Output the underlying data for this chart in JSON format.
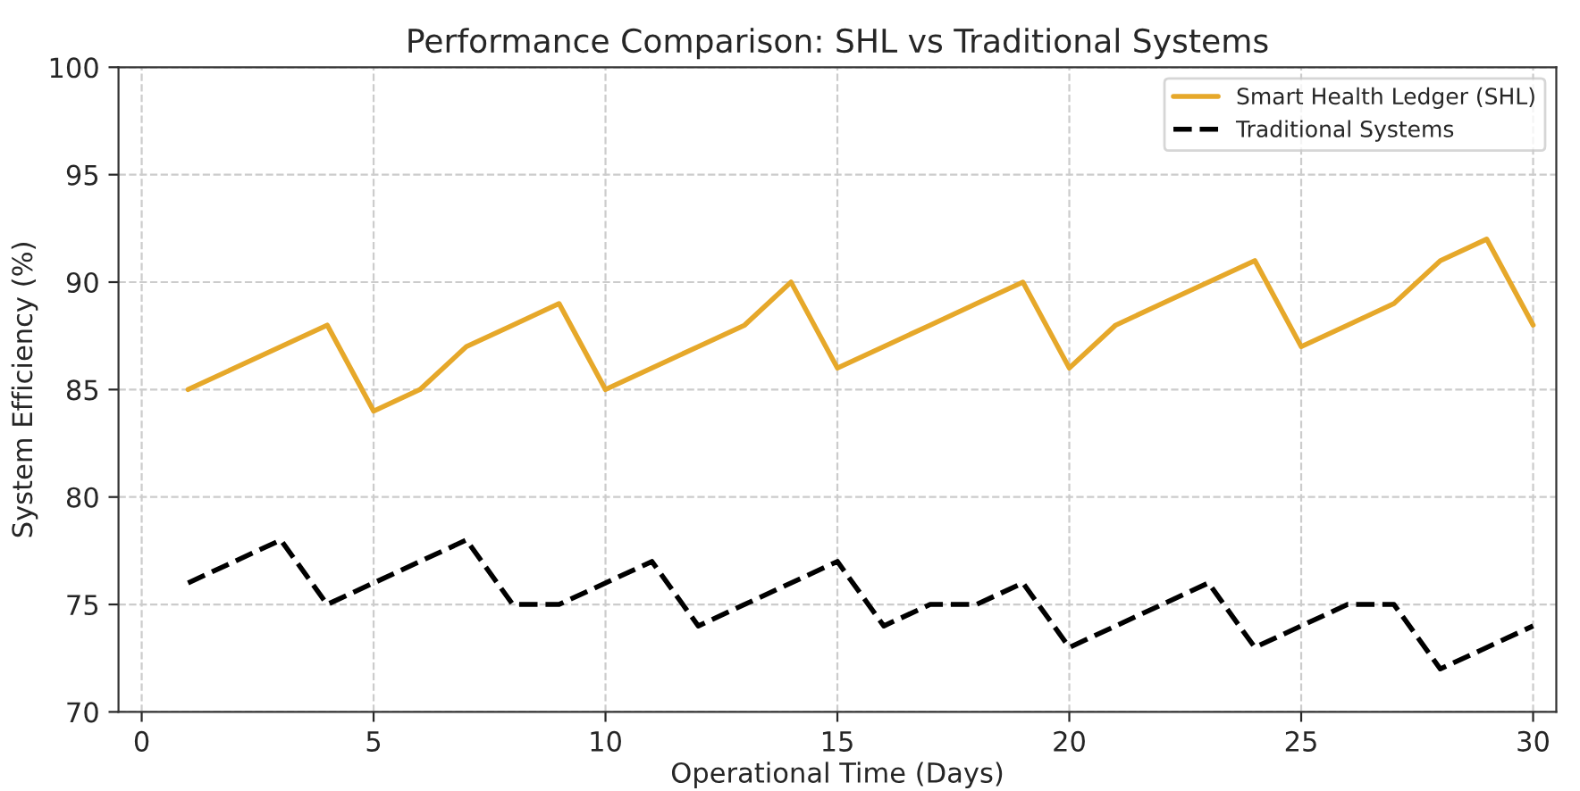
{
  "chart_data": {
    "type": "line",
    "title": "Performance Comparison: SHL vs Traditional Systems",
    "xlabel": "Operational Time (Days)",
    "ylabel": "System Efficiency (%)",
    "x": [
      1,
      2,
      3,
      4,
      5,
      6,
      7,
      8,
      9,
      10,
      11,
      12,
      13,
      14,
      15,
      16,
      17,
      18,
      19,
      20,
      21,
      22,
      23,
      24,
      25,
      26,
      27,
      28,
      29,
      30
    ],
    "series": [
      {
        "name": "Smart Health Ledger (SHL)",
        "color": "#e6a82a",
        "line_style": "solid",
        "values": [
          85,
          86,
          87,
          88,
          84,
          85,
          87,
          88,
          89,
          85,
          86,
          87,
          88,
          90,
          86,
          87,
          88,
          89,
          90,
          86,
          88,
          89,
          90,
          91,
          87,
          88,
          89,
          91,
          92,
          88
        ]
      },
      {
        "name": "Traditional Systems",
        "color": "#000000",
        "line_style": "dashed",
        "values": [
          76,
          77,
          78,
          75,
          76,
          77,
          78,
          75,
          75,
          76,
          77,
          74,
          75,
          76,
          77,
          74,
          75,
          75,
          76,
          73,
          74,
          75,
          76,
          73,
          74,
          75,
          75,
          72,
          73,
          74
        ]
      }
    ],
    "xlim": [
      -0.5,
      30.5
    ],
    "xticks": [
      0,
      5,
      10,
      15,
      20,
      25,
      30
    ],
    "ylim": [
      70,
      100
    ],
    "yticks": [
      70,
      75,
      80,
      85,
      90,
      95,
      100
    ],
    "grid": true,
    "legend": "top right",
    "marker": "none"
  }
}
